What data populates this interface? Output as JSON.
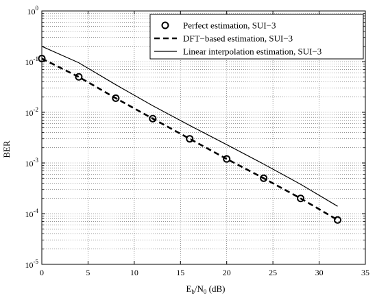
{
  "chart_data": {
    "type": "line",
    "xlabel": "E_b/N_0 (dB)",
    "xlabel_parts": {
      "main": "E",
      "sub1": "b",
      "mid": "/N",
      "sub2": "0",
      "tail": " (dB)"
    },
    "ylabel": "BER",
    "xlim": [
      0,
      35
    ],
    "ylim": [
      1e-05,
      1
    ],
    "yscale": "log",
    "grid": true,
    "legend_position": "top-right",
    "x_ticks": [
      0,
      5,
      10,
      15,
      20,
      25,
      30,
      35
    ],
    "x_tick_labels": [
      "0",
      "5",
      "10",
      "15",
      "20",
      "25",
      "30",
      "35"
    ],
    "y_tick_exponents": [
      "0",
      "-1",
      "-2",
      "-3",
      "-4",
      "-5"
    ],
    "series": [
      {
        "name": "Perfect estimation, SUI−3",
        "style": "markers-circle",
        "x": [
          0,
          4,
          8,
          12,
          16,
          20,
          24,
          28,
          32
        ],
        "y": [
          0.115,
          0.05,
          0.019,
          0.0075,
          0.003,
          0.0012,
          0.0005,
          0.0002,
          7.5e-05
        ]
      },
      {
        "name": "DFT−based estimation, SUI−3",
        "style": "dashed",
        "x": [
          0,
          4,
          8,
          12,
          16,
          20,
          24,
          28,
          32
        ],
        "y": [
          0.115,
          0.05,
          0.019,
          0.0075,
          0.003,
          0.0012,
          0.0005,
          0.0002,
          7.5e-05
        ]
      },
      {
        "name": "Linear interpolation estimation, SUI−3",
        "style": "solid",
        "x": [
          0,
          4,
          8,
          12,
          16,
          20,
          24,
          28,
          32
        ],
        "y": [
          0.2,
          0.095,
          0.035,
          0.0135,
          0.0055,
          0.0023,
          0.00095,
          0.00038,
          0.00014
        ]
      }
    ]
  }
}
